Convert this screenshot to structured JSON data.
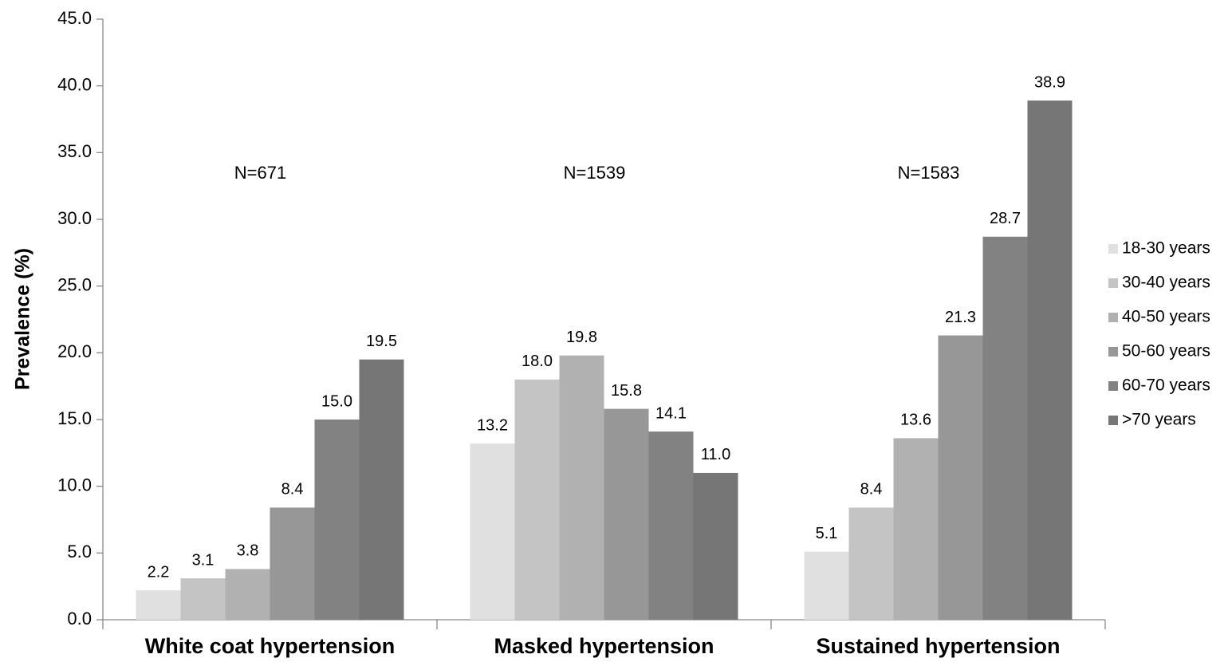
{
  "chart_data": {
    "type": "bar",
    "y_label": "Prevalence (%)",
    "categories": [
      "White coat hypertension",
      "Masked hypertension",
      "Sustained hypertension"
    ],
    "annotations": [
      "N=671",
      "N=1539",
      "N=1583"
    ],
    "series": [
      {
        "name": "18-30 years",
        "color": "#e0e0e0",
        "values": [
          2.2,
          13.2,
          5.1
        ],
        "value_labels": [
          "2.2",
          "13.2",
          "5.1"
        ]
      },
      {
        "name": "30-40 years",
        "color": "#c4c4c4",
        "values": [
          3.1,
          18.0,
          8.4
        ],
        "value_labels": [
          "3.1",
          "18.0",
          "8.4"
        ]
      },
      {
        "name": "40-50 years",
        "color": "#b1b1b1",
        "values": [
          3.8,
          19.8,
          13.6
        ],
        "value_labels": [
          "3.8",
          "19.8",
          "13.6"
        ]
      },
      {
        "name": "50-60 years",
        "color": "#979797",
        "values": [
          8.4,
          15.8,
          21.3
        ],
        "value_labels": [
          "8.4",
          "15.8",
          "21.3"
        ]
      },
      {
        "name": "60-70 years",
        "color": "#828282",
        "values": [
          15.0,
          14.1,
          28.7
        ],
        "value_labels": [
          "15.0",
          "14.1",
          "28.7"
        ]
      },
      {
        "name": ">70 years",
        "color": "#767676",
        "values": [
          19.5,
          11.0,
          38.9
        ],
        "value_labels": [
          "19.5",
          "11.0",
          "38.9"
        ]
      }
    ],
    "ylim": [
      0,
      45
    ],
    "yticks": [
      {
        "value": 0,
        "label": "0.0"
      },
      {
        "value": 5,
        "label": "5.0"
      },
      {
        "value": 10,
        "label": "10.0"
      },
      {
        "value": 15,
        "label": "15.0"
      },
      {
        "value": 20,
        "label": "20.0"
      },
      {
        "value": 25,
        "label": "25.0"
      },
      {
        "value": 30,
        "label": "30.0"
      },
      {
        "value": 35,
        "label": "35.0"
      },
      {
        "value": 40,
        "label": "40.0"
      },
      {
        "value": 45,
        "label": "45.0"
      }
    ],
    "legend": "right"
  }
}
